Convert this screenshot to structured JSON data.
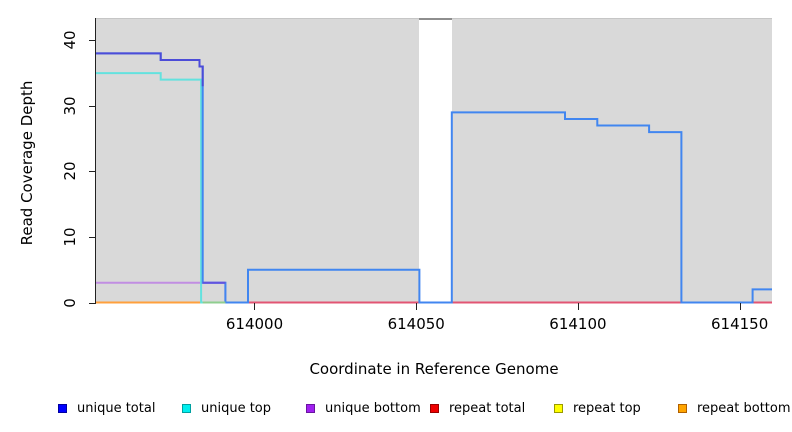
{
  "chart_data": {
    "type": "line",
    "subtype": "step-coverage",
    "title": "",
    "xlabel": "Coordinate in Reference Genome",
    "ylabel": "Read Coverage Depth",
    "xlim": [
      613951,
      614160
    ],
    "ylim": [
      0,
      43.4
    ],
    "x_ticks": [
      614000,
      614050,
      614100,
      614150
    ],
    "y_ticks": [
      0,
      10,
      20,
      30,
      40
    ],
    "grid": false,
    "plot_bg": "#d9d9d9",
    "axis_color": "#222222",
    "coverage_gap_band": {
      "from": 614051,
      "to": 614061,
      "fill": "#ffffff",
      "top_border": "#8e8e8e"
    },
    "legend_position": "bottom",
    "legend": [
      {
        "label": "unique total",
        "fill": "#0000ff",
        "border": "#0000a0"
      },
      {
        "label": "unique top",
        "fill": "#00eeee",
        "border": "#00a0a0"
      },
      {
        "label": "unique bottom",
        "fill": "#a020f0",
        "border": "#6a14a0"
      },
      {
        "label": "repeat total",
        "fill": "#ee0000",
        "border": "#990000"
      },
      {
        "label": "repeat top",
        "fill": "#ffff00",
        "border": "#9a9a00"
      },
      {
        "label": "repeat bottom",
        "fill": "#ffa500",
        "border": "#b06000"
      }
    ],
    "series": [
      {
        "name": "repeat total",
        "stroke": "#e25573",
        "steps": [
          [
            613998,
            0
          ],
          [
            614160,
            0
          ]
        ]
      },
      {
        "name": "repeat top",
        "stroke": "#f5f560",
        "steps": [
          [
            613951,
            0
          ],
          [
            613984,
            0
          ]
        ]
      },
      {
        "name": "repeat bottom",
        "stroke": "#ffa03c",
        "steps": [
          [
            613951,
            0
          ],
          [
            613984,
            0
          ]
        ]
      },
      {
        "name": "unique bottom",
        "stroke": "#c18ee2",
        "steps": [
          [
            613951,
            3
          ],
          [
            613991,
            3
          ],
          [
            613991,
            0
          ]
        ]
      },
      {
        "name": "unique top",
        "stroke": "#63e2de",
        "steps": [
          [
            613951,
            35
          ],
          [
            613971,
            35
          ],
          [
            613971,
            34
          ],
          [
            613983.5,
            34
          ],
          [
            613983.5,
            0
          ],
          [
            613991,
            0
          ]
        ]
      },
      {
        "name": "unique total",
        "stroke": "#4186f0",
        "steps": [
          [
            613951,
            38
          ],
          [
            613971,
            38
          ],
          [
            613971,
            37
          ],
          [
            613983,
            37
          ],
          [
            613983,
            36
          ],
          [
            613984,
            36
          ],
          [
            613984,
            3
          ],
          [
            613991,
            3
          ],
          [
            613991,
            0
          ],
          [
            613998,
            0
          ],
          [
            613998,
            5
          ],
          [
            614051,
            5
          ],
          [
            614051,
            0
          ],
          [
            614061,
            0
          ],
          [
            614061,
            29
          ],
          [
            614096,
            29
          ],
          [
            614096,
            28
          ],
          [
            614106,
            28
          ],
          [
            614106,
            27
          ],
          [
            614122,
            27
          ],
          [
            614122,
            26
          ],
          [
            614132,
            26
          ],
          [
            614132,
            0
          ],
          [
            614154,
            0
          ],
          [
            614154,
            2
          ],
          [
            614160,
            2
          ]
        ]
      }
    ],
    "overlap_segments": [
      {
        "name": "unique-top-over-repeat-bottom",
        "stroke": "#8fce8f",
        "steps": [
          [
            613984,
            0
          ],
          [
            613991,
            0
          ]
        ]
      },
      {
        "name": "unique-total-over-unique-bottom",
        "stroke": "#6353de",
        "steps": [
          [
            613984,
            3
          ],
          [
            613991,
            3
          ]
        ]
      },
      {
        "name": "unique-total-dark-left",
        "stroke": "#4c4cd8",
        "steps": [
          [
            613951,
            38
          ],
          [
            613971,
            38
          ],
          [
            613971,
            37
          ],
          [
            613983,
            37
          ],
          [
            613983,
            36
          ],
          [
            613984,
            36
          ],
          [
            613984,
            33
          ]
        ]
      }
    ]
  }
}
